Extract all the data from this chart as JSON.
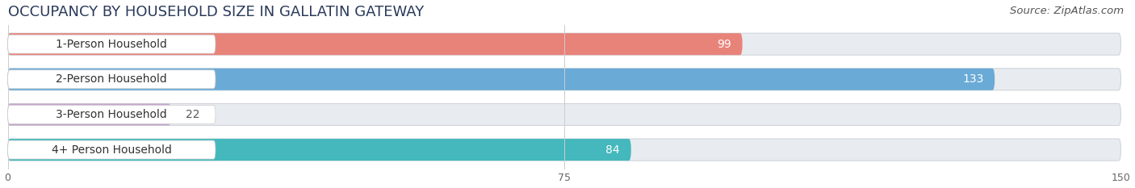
{
  "title": "OCCUPANCY BY HOUSEHOLD SIZE IN GALLATIN GATEWAY",
  "source": "Source: ZipAtlas.com",
  "categories": [
    "1-Person Household",
    "2-Person Household",
    "3-Person Household",
    "4+ Person Household"
  ],
  "values": [
    99,
    133,
    22,
    84
  ],
  "bar_colors": [
    "#e8837a",
    "#6aaad6",
    "#c4a8cc",
    "#44b8bc"
  ],
  "background_color": "#ffffff",
  "bar_bg_color": "#e8ecf0",
  "xlim": [
    0,
    150
  ],
  "xticks": [
    0,
    75,
    150
  ],
  "title_fontsize": 13,
  "label_fontsize": 10,
  "value_fontsize": 10,
  "source_fontsize": 9.5
}
